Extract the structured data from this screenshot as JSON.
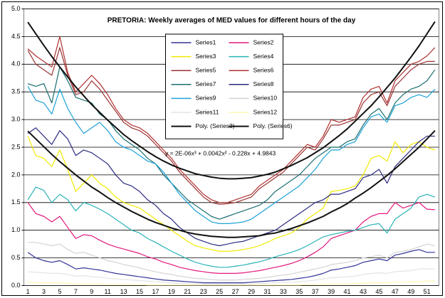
{
  "chart_data": {
    "type": "line",
    "title": "PRETORIA:  Weekly averages of MED values for different hours of the day",
    "annotation": "y = 2E-06x³ + 0.0042x² - 0.228x + 4.9843",
    "categories": [
      "1",
      null,
      "3",
      null,
      "5",
      null,
      "7",
      null,
      "9",
      null,
      "11",
      null,
      "13",
      null,
      "15",
      null,
      "17",
      null,
      "19",
      null,
      "21",
      null,
      "23",
      null,
      "25",
      null,
      "27",
      null,
      "29",
      null,
      "31",
      null,
      "33",
      null,
      "35",
      null,
      "37",
      null,
      "39",
      null,
      "41",
      null,
      "43",
      null,
      "45",
      null,
      "47",
      null,
      "49",
      null,
      "51",
      null
    ],
    "ylim": [
      0,
      5
    ],
    "yticks": [
      {
        "value": 0,
        "label": "0.0"
      },
      0.5,
      {
        "value": 1,
        "label": "1.0"
      },
      1.5,
      {
        "value": 2,
        "label": "2.0"
      },
      2.5,
      {
        "value": 3,
        "label": "3.0"
      },
      3.5,
      {
        "value": 4,
        "label": "4.0"
      },
      4.5,
      {
        "value": 5,
        "label": "5.0"
      }
    ],
    "grid": true,
    "legend": "top",
    "series": [
      {
        "name": "Series1",
        "color": "#333399",
        "values": [
          0.6,
          0.5,
          0.45,
          0.42,
          0.45,
          0.38,
          0.3,
          0.32,
          0.3,
          0.28,
          0.25,
          0.22,
          0.2,
          0.18,
          0.16,
          0.14,
          0.12,
          0.1,
          0.09,
          0.08,
          0.07,
          0.06,
          0.05,
          0.05,
          0.05,
          0.05,
          0.05,
          0.05,
          0.06,
          0.07,
          0.08,
          0.09,
          0.1,
          0.11,
          0.13,
          0.15,
          0.18,
          0.22,
          0.28,
          0.3,
          0.33,
          0.36,
          0.42,
          0.45,
          0.48,
          0.45,
          0.55,
          0.58,
          0.62,
          0.65,
          0.6,
          0.6
        ]
      },
      {
        "name": "Series2",
        "color": "#e2197d",
        "values": [
          1.5,
          1.3,
          1.25,
          1.15,
          1.25,
          1.05,
          0.85,
          0.92,
          0.9,
          0.82,
          0.75,
          0.7,
          0.66,
          0.62,
          0.58,
          0.52,
          0.48,
          0.42,
          0.38,
          0.33,
          0.3,
          0.27,
          0.25,
          0.23,
          0.22,
          0.22,
          0.22,
          0.23,
          0.25,
          0.27,
          0.3,
          0.33,
          0.36,
          0.4,
          0.45,
          0.52,
          0.6,
          0.7,
          0.85,
          0.9,
          0.95,
          1.0,
          1.15,
          1.25,
          1.3,
          1.3,
          1.5,
          1.4,
          1.45,
          1.5,
          1.38,
          1.37
        ]
      },
      {
        "name": "Series3",
        "color": "#f0ea00",
        "values": [
          2.7,
          2.35,
          2.3,
          2.15,
          2.45,
          2.1,
          1.7,
          1.85,
          2.0,
          1.85,
          1.75,
          1.6,
          1.5,
          1.45,
          1.4,
          1.3,
          1.2,
          1.1,
          1.0,
          0.9,
          0.8,
          0.72,
          0.68,
          0.65,
          0.62,
          0.62,
          0.63,
          0.65,
          0.68,
          0.72,
          0.78,
          0.85,
          0.9,
          0.95,
          1.05,
          1.2,
          1.3,
          1.4,
          1.7,
          1.72,
          1.75,
          1.8,
          2.0,
          2.3,
          2.35,
          2.25,
          2.6,
          2.4,
          2.55,
          2.6,
          2.5,
          2.45
        ]
      },
      {
        "name": "Series4",
        "color": "#2ab3b8",
        "values": [
          1.55,
          1.78,
          1.72,
          1.5,
          1.65,
          1.55,
          1.35,
          1.5,
          1.45,
          1.38,
          1.3,
          1.2,
          1.1,
          1.0,
          0.95,
          0.85,
          0.78,
          0.7,
          0.62,
          0.55,
          0.48,
          0.42,
          0.38,
          0.35,
          0.33,
          0.33,
          0.35,
          0.37,
          0.4,
          0.43,
          0.47,
          0.52,
          0.56,
          0.6,
          0.65,
          0.72,
          0.8,
          0.88,
          0.92,
          0.95,
          0.98,
          1.0,
          1.05,
          1.1,
          1.12,
          0.95,
          1.2,
          1.3,
          1.4,
          1.6,
          1.65,
          1.6
        ]
      },
      {
        "name": "Series5",
        "color": "#993333",
        "values": [
          4.25,
          4.0,
          3.9,
          3.8,
          4.3,
          3.8,
          3.45,
          3.5,
          3.7,
          3.55,
          3.35,
          3.15,
          2.95,
          2.85,
          2.8,
          2.7,
          2.55,
          2.4,
          2.25,
          2.05,
          1.9,
          1.75,
          1.6,
          1.5,
          1.47,
          1.48,
          1.5,
          1.55,
          1.6,
          1.75,
          1.85,
          1.95,
          2.05,
          2.2,
          2.35,
          2.5,
          2.45,
          2.65,
          2.9,
          2.9,
          2.95,
          3.0,
          3.3,
          3.45,
          3.5,
          3.25,
          3.6,
          3.75,
          3.9,
          4.0,
          4.05,
          4.05
        ]
      },
      {
        "name": "Series6",
        "color": "#b03030",
        "values": [
          4.28,
          4.15,
          4.05,
          3.95,
          4.5,
          3.85,
          3.5,
          3.65,
          3.8,
          3.65,
          3.45,
          3.2,
          3.0,
          2.9,
          2.85,
          2.75,
          2.6,
          2.45,
          2.3,
          2.1,
          1.95,
          1.8,
          1.65,
          1.55,
          1.5,
          1.5,
          1.55,
          1.6,
          1.65,
          1.8,
          1.9,
          2.0,
          2.1,
          2.25,
          2.4,
          2.55,
          2.5,
          2.7,
          3.0,
          2.95,
          3.0,
          3.05,
          3.4,
          3.55,
          3.6,
          3.3,
          3.7,
          3.85,
          4.0,
          4.05,
          4.15,
          4.3
        ]
      },
      {
        "name": "Series7",
        "color": "#1a6e6e",
        "values": [
          3.65,
          3.6,
          3.65,
          3.3,
          3.95,
          3.7,
          3.4,
          3.35,
          3.3,
          3.1,
          3.0,
          2.8,
          2.65,
          2.55,
          2.45,
          2.3,
          2.2,
          2.0,
          1.85,
          1.7,
          1.55,
          1.45,
          1.35,
          1.25,
          1.2,
          1.25,
          1.3,
          1.35,
          1.4,
          1.45,
          1.55,
          1.7,
          1.8,
          1.9,
          2.0,
          2.15,
          2.3,
          2.4,
          2.5,
          2.5,
          2.6,
          2.65,
          2.9,
          3.1,
          3.2,
          3.0,
          3.3,
          3.45,
          3.55,
          3.6,
          3.7,
          3.9
        ]
      },
      {
        "name": "Series8",
        "color": "#2a2a80",
        "values": [
          2.75,
          2.85,
          2.7,
          2.55,
          2.8,
          2.65,
          2.35,
          2.45,
          2.4,
          2.3,
          2.2,
          2.0,
          1.85,
          1.8,
          1.7,
          1.55,
          1.45,
          1.3,
          1.2,
          1.05,
          0.95,
          0.85,
          0.8,
          0.75,
          0.72,
          0.75,
          0.78,
          0.8,
          0.85,
          0.9,
          0.95,
          1.0,
          1.1,
          1.2,
          1.3,
          1.4,
          1.5,
          1.55,
          1.65,
          1.65,
          1.7,
          1.75,
          1.95,
          2.0,
          2.1,
          1.85,
          2.15,
          2.3,
          2.45,
          2.6,
          2.7,
          2.7
        ]
      },
      {
        "name": "Series9",
        "color": "#1ba1d8",
        "values": [
          3.6,
          3.35,
          3.3,
          3.1,
          3.55,
          3.2,
          2.95,
          2.75,
          2.85,
          2.95,
          2.8,
          2.6,
          2.5,
          2.45,
          2.35,
          2.25,
          2.2,
          2.05,
          1.85,
          1.65,
          1.5,
          1.35,
          1.25,
          1.15,
          1.12,
          1.12,
          1.13,
          1.15,
          1.2,
          1.3,
          1.4,
          1.5,
          1.6,
          1.7,
          1.8,
          1.95,
          2.1,
          2.3,
          2.45,
          2.45,
          2.55,
          2.6,
          2.85,
          3.05,
          3.1,
          2.95,
          3.25,
          3.3,
          3.4,
          3.45,
          3.4,
          3.55
        ]
      },
      {
        "name": "Series10",
        "color": "#d4d4d4",
        "values": [
          0.78,
          0.78,
          0.75,
          0.72,
          0.75,
          0.65,
          0.58,
          0.6,
          0.55,
          0.5,
          0.45,
          0.42,
          0.38,
          0.35,
          0.32,
          0.28,
          0.25,
          0.22,
          0.2,
          0.17,
          0.15,
          0.13,
          0.12,
          0.11,
          0.1,
          0.1,
          0.1,
          0.11,
          0.12,
          0.13,
          0.15,
          0.17,
          0.19,
          0.21,
          0.24,
          0.27,
          0.3,
          0.33,
          0.38,
          0.4,
          0.42,
          0.45,
          0.5,
          0.52,
          0.55,
          0.5,
          0.6,
          0.62,
          0.65,
          0.7,
          0.75,
          0.72
        ]
      },
      {
        "name": "Series11",
        "color": "#e4e4e4",
        "values": [
          0.25,
          0.24,
          0.23,
          0.22,
          0.22,
          0.2,
          0.17,
          0.18,
          0.16,
          0.15,
          0.13,
          0.12,
          0.11,
          0.1,
          0.09,
          0.08,
          0.07,
          0.06,
          0.05,
          0.04,
          0.04,
          0.03,
          0.03,
          0.03,
          0.03,
          0.03,
          0.03,
          0.03,
          0.03,
          0.04,
          0.04,
          0.05,
          0.06,
          0.06,
          0.07,
          0.08,
          0.1,
          0.12,
          0.14,
          0.15,
          0.16,
          0.17,
          0.2,
          0.22,
          0.23,
          0.22,
          0.25,
          0.26,
          0.27,
          0.3,
          0.3,
          0.3
        ]
      },
      {
        "name": "Series12",
        "color": "#fff5b0",
        "values": [
          0.06,
          0.05,
          0.05,
          0.05,
          0.05,
          0.04,
          0.03,
          0.03,
          0.03,
          0.03,
          0.02,
          0.02,
          0.02,
          0.02,
          0.02,
          0.01,
          0.01,
          0.01,
          0.01,
          0.01,
          0.01,
          0.01,
          0.01,
          0.01,
          0.01,
          0.01,
          0.01,
          0.01,
          0.01,
          0.01,
          0.01,
          0.01,
          0.01,
          0.01,
          0.01,
          0.02,
          0.02,
          0.02,
          0.03,
          0.03,
          0.03,
          0.04,
          0.04,
          0.05,
          0.05,
          0.05,
          0.06,
          0.06,
          0.07,
          0.07,
          0.08,
          0.08
        ]
      },
      {
        "name": "Poly. (Series3)",
        "color": "#111111",
        "linewidth": 2,
        "values": [
          2.79,
          2.65,
          2.51,
          2.37,
          2.24,
          2.12,
          2.0,
          1.89,
          1.78,
          1.69,
          1.59,
          1.5,
          1.42,
          1.34,
          1.27,
          1.2,
          1.14,
          1.09,
          1.04,
          1.0,
          0.96,
          0.93,
          0.91,
          0.89,
          0.88,
          0.87,
          0.87,
          0.88,
          0.89,
          0.9,
          0.93,
          0.95,
          0.99,
          1.03,
          1.08,
          1.13,
          1.19,
          1.25,
          1.33,
          1.4,
          1.48,
          1.58,
          1.67,
          1.77,
          1.88,
          1.99,
          2.11,
          2.24,
          2.37,
          2.5,
          2.65,
          2.8
        ]
      },
      {
        "name": "Poly. (Series6)",
        "color": "#111111",
        "linewidth": 2,
        "values": [
          4.76,
          4.55,
          4.34,
          4.14,
          3.95,
          3.77,
          3.59,
          3.43,
          3.27,
          3.13,
          2.99,
          2.86,
          2.73,
          2.62,
          2.52,
          2.42,
          2.33,
          2.25,
          2.18,
          2.12,
          2.07,
          2.02,
          1.99,
          1.96,
          1.94,
          1.93,
          1.93,
          1.94,
          1.95,
          1.98,
          2.01,
          2.05,
          2.11,
          2.17,
          2.24,
          2.31,
          2.4,
          2.49,
          2.6,
          2.71,
          2.83,
          2.97,
          3.11,
          3.25,
          3.41,
          3.58,
          3.75,
          3.94,
          4.13,
          4.33,
          4.55,
          4.77
        ]
      }
    ]
  }
}
